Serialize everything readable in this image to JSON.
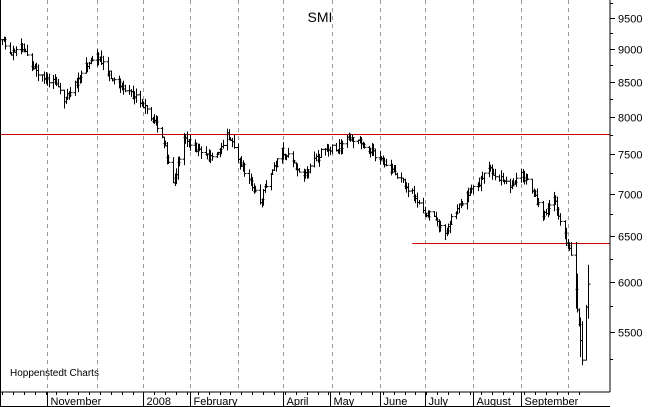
{
  "chart_data": {
    "type": "ohlc",
    "title": "SMI",
    "credit": "Hoppenstedt Charts",
    "y_axis": {
      "position": "right",
      "scale": "log",
      "ylim": [
        5050,
        9900
      ],
      "ticks": [
        5500,
        6000,
        6500,
        7000,
        7500,
        8000,
        8500,
        9000,
        9500
      ]
    },
    "x_axis": {
      "start": "2007-10-03",
      "end": "2008-10-14",
      "ticks": [
        {
          "label": "November",
          "date": "2007-11-01"
        },
        {
          "label": "2008",
          "date": "2008-01-02"
        },
        {
          "label": "February",
          "date": "2008-02-01"
        },
        {
          "label": "April",
          "date": "2008-04-01"
        },
        {
          "label": "May",
          "date": "2008-05-01"
        },
        {
          "label": "June",
          "date": "2008-06-02"
        },
        {
          "label": "July",
          "date": "2008-07-01"
        },
        {
          "label": "August",
          "date": "2008-08-01"
        },
        {
          "label": "September",
          "date": "2008-09-01"
        }
      ]
    },
    "grid": {
      "vertical": true,
      "horizontal": false,
      "style": "dashed"
    },
    "reference_lines": [
      {
        "value": 7770,
        "from": "2007-10-03",
        "to": "2008-10-14",
        "color": "#cc0000"
      },
      {
        "value": 6420,
        "from": "2008-06-23",
        "to": "2008-10-14",
        "color": "#cc0000"
      }
    ],
    "price_path": [
      [
        "2007-10-03",
        9150
      ],
      [
        "2007-10-08",
        8920
      ],
      [
        "2007-10-15",
        9030
      ],
      [
        "2007-10-22",
        8780
      ],
      [
        "2007-10-29",
        8560
      ],
      [
        "2007-11-05",
        8520
      ],
      [
        "2007-11-12",
        8250
      ],
      [
        "2007-11-19",
        8450
      ],
      [
        "2007-11-26",
        8750
      ],
      [
        "2007-12-03",
        8900
      ],
      [
        "2007-12-10",
        8650
      ],
      [
        "2007-12-17",
        8450
      ],
      [
        "2007-12-24",
        8350
      ],
      [
        "2007-12-31",
        8200
      ],
      [
        "2008-01-07",
        8000
      ],
      [
        "2008-01-14",
        7750
      ],
      [
        "2008-01-21",
        7100
      ],
      [
        "2008-01-28",
        7700
      ],
      [
        "2008-02-04",
        7600
      ],
      [
        "2008-02-11",
        7450
      ],
      [
        "2008-02-18",
        7480
      ],
      [
        "2008-02-25",
        7780
      ],
      [
        "2008-03-03",
        7450
      ],
      [
        "2008-03-10",
        7150
      ],
      [
        "2008-03-17",
        6900
      ],
      [
        "2008-03-24",
        7250
      ],
      [
        "2008-03-31",
        7550
      ],
      [
        "2008-04-07",
        7400
      ],
      [
        "2008-04-14",
        7200
      ],
      [
        "2008-04-21",
        7400
      ],
      [
        "2008-04-28",
        7600
      ],
      [
        "2008-05-05",
        7550
      ],
      [
        "2008-05-12",
        7700
      ],
      [
        "2008-05-19",
        7700
      ],
      [
        "2008-05-26",
        7550
      ],
      [
        "2008-06-02",
        7450
      ],
      [
        "2008-06-09",
        7300
      ],
      [
        "2008-06-16",
        7150
      ],
      [
        "2008-06-23",
        7000
      ],
      [
        "2008-06-30",
        6800
      ],
      [
        "2008-07-07",
        6700
      ],
      [
        "2008-07-14",
        6550
      ],
      [
        "2008-07-21",
        6800
      ],
      [
        "2008-07-28",
        7000
      ],
      [
        "2008-08-04",
        7100
      ],
      [
        "2008-08-11",
        7300
      ],
      [
        "2008-08-18",
        7200
      ],
      [
        "2008-08-25",
        7100
      ],
      [
        "2008-09-01",
        7250
      ],
      [
        "2008-09-08",
        7050
      ],
      [
        "2008-09-15",
        6700
      ],
      [
        "2008-09-22",
        6950
      ],
      [
        "2008-09-29",
        6500
      ],
      [
        "2008-10-03",
        6300
      ],
      [
        "2008-10-06",
        5900
      ],
      [
        "2008-10-08",
        5600
      ],
      [
        "2008-10-10",
        5250
      ],
      [
        "2008-10-14",
        5950
      ]
    ]
  }
}
